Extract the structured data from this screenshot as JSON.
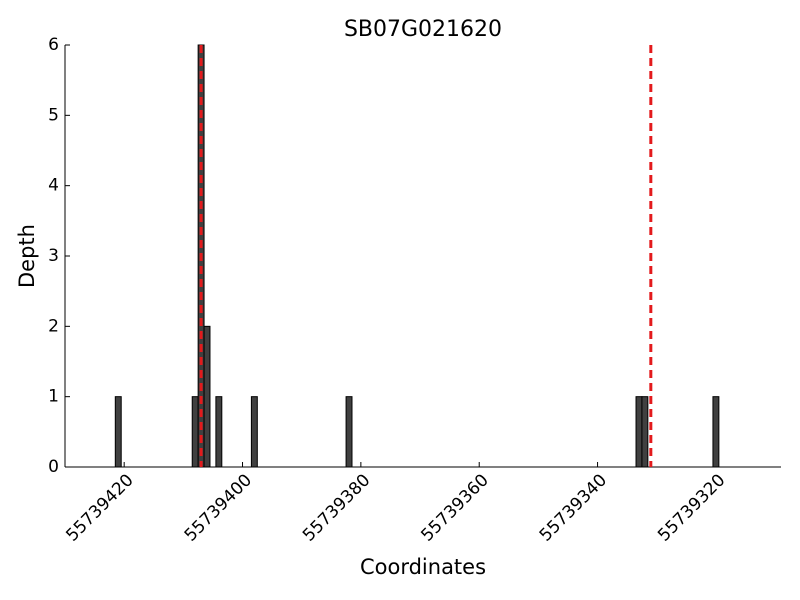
{
  "chart_data": {
    "type": "bar",
    "title": "SB07G021620",
    "x_label": "Coordinates",
    "y_label": "Depth",
    "x": [
      55739421,
      55739408,
      55739407,
      55739406,
      55739404,
      55739398,
      55739382,
      55739333,
      55739332,
      55739320
    ],
    "values": [
      1,
      1,
      6,
      2,
      1,
      1,
      1,
      1,
      1,
      1
    ],
    "color": "#404040",
    "xlim": [
      55739430,
      55739309
    ],
    "xticks": [
      55739420,
      55739400,
      55739380,
      55739360,
      55739340,
      55739320
    ],
    "ylim": [
      0,
      6
    ],
    "yticks": [
      0,
      1,
      2,
      3,
      4,
      5,
      6
    ],
    "vlines": [
      55739407,
      55739331
    ],
    "vline_color": "#e31a1c"
  }
}
